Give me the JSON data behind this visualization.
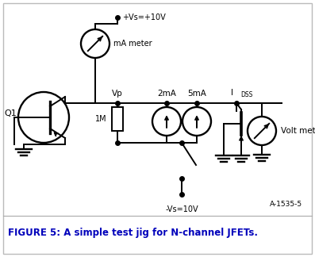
{
  "fig_width": 3.97,
  "fig_height": 3.24,
  "dpi": 100,
  "background_color": "#ffffff",
  "border_color": "#bbbbbb",
  "title_text": "FIGURE 5: A simple test jig for N-channel JFETs.",
  "title_color": "#0000bb",
  "title_fontsize": 8.5,
  "figure_label": "A-1535-5",
  "label_vp": "Vp",
  "label_2ma": "2mA",
  "label_5ma": "5mA",
  "label_idss_main": "I",
  "label_idss_sub": "DSS",
  "label_mameter": "mA meter",
  "label_voltmeter": "Volt meter",
  "label_1m": "1M",
  "label_q1": "Q1",
  "label_vs_pos": "+Vs=+10V",
  "label_vs_neg": "-Vs=10V",
  "line_color": "#000000",
  "line_width": 1.4
}
